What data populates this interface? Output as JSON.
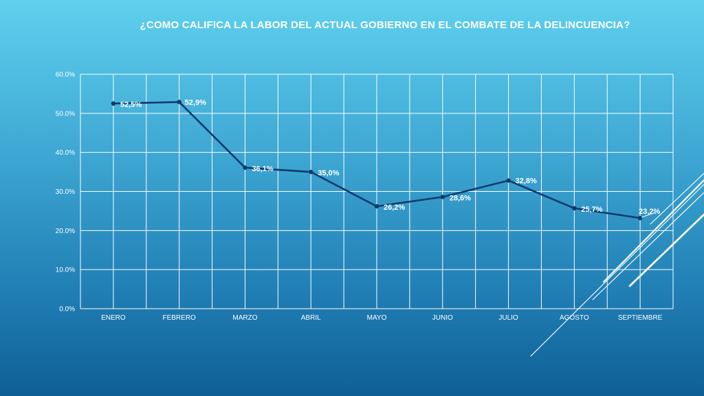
{
  "chart_data": {
    "type": "line",
    "title": "¿COMO CALIFICA LA LABOR DEL ACTUAL GOBIERNO EN EL COMBATE DE LA DELINCUENCIA?",
    "xlabel": "",
    "ylabel": "",
    "categories": [
      "ENERO",
      "FEBRERO",
      "MARZO",
      "ABRIL",
      "MAYO",
      "JUNIO",
      "JULIO",
      "AGOSTO",
      "SEPTIEMBRE"
    ],
    "series": [
      {
        "values": [
          52.5,
          52.9,
          36.1,
          35.0,
          26.2,
          28.6,
          32.8,
          25.7,
          23.2
        ],
        "labels": [
          "52,5%",
          "52,9%",
          "36,1%",
          "35,0%",
          "26,2%",
          "28,6%",
          "32,8%",
          "25,7%",
          "23,2%"
        ],
        "color": "#0d3a6e"
      }
    ],
    "ylim": [
      0,
      60
    ],
    "yticks": [
      "0.0%",
      "10.0%",
      "20.0%",
      "30.0%",
      "40.0%",
      "50.0%",
      "60.0%"
    ],
    "grid": true,
    "legend": "none"
  },
  "colors": {
    "line": "#0d3a6e",
    "grid": "#ffffff",
    "text": "#ffffff"
  }
}
